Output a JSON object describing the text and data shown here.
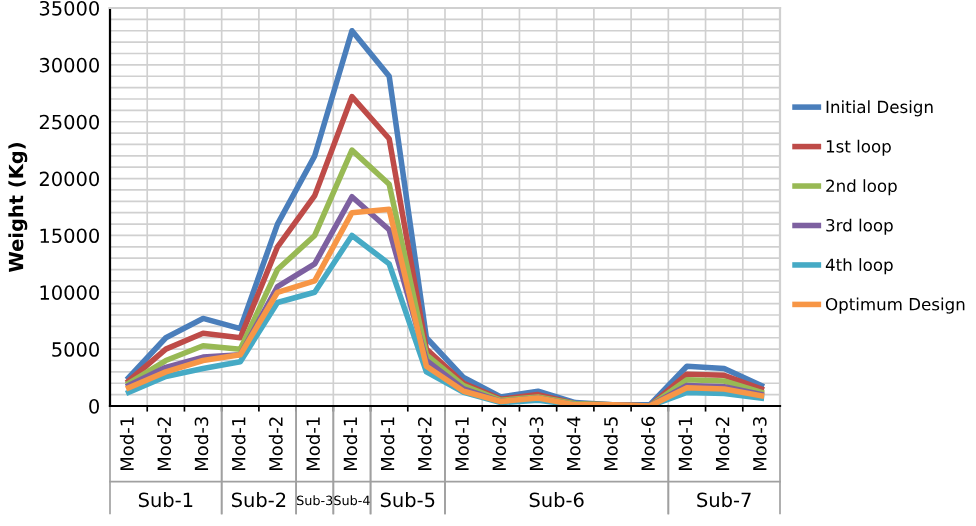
{
  "chart_data": {
    "type": "line",
    "ylabel": "Weight (Kg)",
    "categories": [
      "Mod-1",
      "Mod-2",
      "Mod-3",
      "Mod-1",
      "Mod-2",
      "Mod-1",
      "Mod-1",
      "Mod-1",
      "Mod-2",
      "Mod-1",
      "Mod-2",
      "Mod-3",
      "Mod-4",
      "Mod-5",
      "Mod-6",
      "Mod-1",
      "Mod-2",
      "Mod-3"
    ],
    "annotations": [
      "Sub-1",
      "Sub-2",
      "Sub-3",
      "Sub-4",
      "Sub-5",
      "Sub-6",
      "Sub-7"
    ],
    "series": [
      {
        "name": "Initial Design",
        "color": "#4a7ebb",
        "values": [
          2500,
          6000,
          7700,
          6800,
          16000,
          22000,
          33000,
          29000,
          6000,
          2500,
          800,
          1300,
          300,
          100,
          100,
          3500,
          3300,
          1800
        ]
      },
      {
        "name": "1st loop",
        "color": "#be4b48",
        "values": [
          2200,
          5000,
          6400,
          6000,
          14000,
          18500,
          27200,
          23500,
          5000,
          2000,
          600,
          1000,
          200,
          100,
          0,
          2800,
          2700,
          1500
        ]
      },
      {
        "name": "2nd loop",
        "color": "#98b954",
        "values": [
          2000,
          4000,
          5300,
          5000,
          12000,
          15000,
          22500,
          19500,
          4500,
          1800,
          500,
          800,
          200,
          100,
          0,
          2300,
          2200,
          1200
        ]
      },
      {
        "name": "3rd loop",
        "color": "#7d60a0",
        "values": [
          1800,
          3400,
          4300,
          4500,
          10500,
          12500,
          18400,
          15500,
          4000,
          1500,
          400,
          700,
          100,
          100,
          0,
          1800,
          1700,
          1000
        ]
      },
      {
        "name": "4th loop",
        "color": "#46aac5",
        "values": [
          1200,
          2600,
          3300,
          3900,
          9100,
          10000,
          15000,
          12500,
          3000,
          1200,
          300,
          500,
          100,
          0,
          0,
          1200,
          1100,
          700
        ]
      },
      {
        "name": "Optimum Design",
        "color": "#f79646",
        "values": [
          1600,
          3000,
          4000,
          4500,
          10000,
          11000,
          17000,
          17300,
          3500,
          1300,
          400,
          700,
          100,
          100,
          0,
          1600,
          1500,
          900
        ]
      }
    ],
    "ylim": [
      0,
      35000
    ],
    "yticks": [
      0,
      {
        "value": 1000,
        "label": null
      },
      {
        "value": 2000,
        "label": null
      },
      {
        "value": 3000,
        "label": null
      },
      {
        "value": 4000,
        "label": null
      },
      5000,
      {
        "value": 6000,
        "label": null
      },
      {
        "value": 7000,
        "label": null
      },
      {
        "value": 8000,
        "label": null
      },
      {
        "value": 9000,
        "label": null
      },
      10000,
      {
        "value": 11000,
        "label": null
      },
      {
        "value": 12000,
        "label": null
      },
      {
        "value": 13000,
        "label": null
      },
      {
        "value": 14000,
        "label": null
      },
      15000,
      {
        "value": 16000,
        "label": null
      },
      {
        "value": 17000,
        "label": null
      },
      {
        "value": 18000,
        "label": null
      },
      {
        "value": 19000,
        "label": null
      },
      20000,
      {
        "value": 21000,
        "label": null
      },
      {
        "value": 22000,
        "label": null
      },
      {
        "value": 23000,
        "label": null
      },
      {
        "value": 24000,
        "label": null
      },
      25000,
      {
        "value": 26000,
        "label": null
      },
      {
        "value": 27000,
        "label": null
      },
      {
        "value": 28000,
        "label": null
      },
      {
        "value": 29000,
        "label": null
      },
      30000,
      {
        "value": 31000,
        "label": null
      },
      {
        "value": 32000,
        "label": null
      },
      {
        "value": 33000,
        "label": null
      },
      {
        "value": 34000,
        "label": null
      },
      35000
    ],
    "grid": true,
    "legend": "right",
    "marker": "none",
    "line_style": "solid"
  }
}
